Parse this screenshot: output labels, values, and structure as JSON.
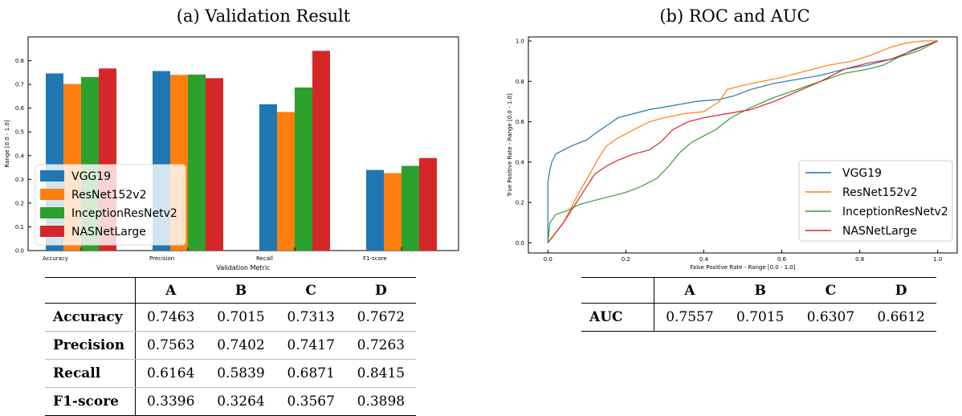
{
  "titles": {
    "a": "(a) Validation Result",
    "b": "(b) ROC and AUC"
  },
  "colors": {
    "VGG19": "#1f77b4",
    "ResNet152v2": "#ff7f0e",
    "InceptionResNetv2": "#2ca02c",
    "NASNetLarge": "#d62728"
  },
  "chart_data": [
    {
      "type": "bar",
      "categories": [
        "Accuracy",
        "Precision",
        "Recall",
        "F1-score"
      ],
      "series": [
        {
          "name": "VGG19",
          "values": [
            0.7463,
            0.7563,
            0.6164,
            0.3396
          ]
        },
        {
          "name": "ResNet152v2",
          "values": [
            0.7015,
            0.7402,
            0.5839,
            0.3264
          ]
        },
        {
          "name": "InceptionResNetv2",
          "values": [
            0.7313,
            0.7417,
            0.6871,
            0.3567
          ]
        },
        {
          "name": "NASNetLarge",
          "values": [
            0.7672,
            0.7263,
            0.8415,
            0.3898
          ]
        }
      ],
      "xlabel": "Validation Metric",
      "ylabel": "Range [0.0 - 1.0]",
      "ylim": [
        0,
        0.9
      ],
      "yticks": [
        "0.0",
        "0.1",
        "0.2",
        "0.3",
        "0.4",
        "0.5",
        "0.6",
        "0.7",
        "0.8"
      ],
      "legend": "center-left",
      "grid": false
    },
    {
      "type": "line",
      "xlabel": "False Positive Rate - Range [0.0 - 1.0]",
      "ylabel": "True Positive Rate - Range [0.0 - 1.0]",
      "xlim": [
        -0.05,
        1.05
      ],
      "ylim": [
        -0.05,
        1.02
      ],
      "xticks": [
        "0.0",
        "0.2",
        "0.4",
        "0.6",
        "0.8",
        "1.0"
      ],
      "yticks": [
        "0.0",
        "0.2",
        "0.4",
        "0.6",
        "0.8",
        "1.0"
      ],
      "legend": "center-right",
      "grid": false,
      "series": [
        {
          "name": "VGG19",
          "points": [
            [
              0,
              0
            ],
            [
              0,
              0.3
            ],
            [
              0.005,
              0.36
            ],
            [
              0.01,
              0.4
            ],
            [
              0.02,
              0.44
            ],
            [
              0.04,
              0.46
            ],
            [
              0.06,
              0.48
            ],
            [
              0.1,
              0.51
            ],
            [
              0.12,
              0.54
            ],
            [
              0.15,
              0.58
            ],
            [
              0.18,
              0.62
            ],
            [
              0.22,
              0.64
            ],
            [
              0.26,
              0.66
            ],
            [
              0.32,
              0.68
            ],
            [
              0.38,
              0.7
            ],
            [
              0.44,
              0.71
            ],
            [
              0.48,
              0.73
            ],
            [
              0.52,
              0.76
            ],
            [
              0.58,
              0.79
            ],
            [
              0.64,
              0.81
            ],
            [
              0.7,
              0.83
            ],
            [
              0.76,
              0.86
            ],
            [
              0.82,
              0.88
            ],
            [
              0.86,
              0.9
            ],
            [
              0.9,
              0.92
            ],
            [
              0.94,
              0.96
            ],
            [
              0.97,
              0.98
            ],
            [
              1,
              1
            ]
          ]
        },
        {
          "name": "ResNet152v2",
          "points": [
            [
              0,
              0
            ],
            [
              0.04,
              0.1
            ],
            [
              0.08,
              0.25
            ],
            [
              0.11,
              0.35
            ],
            [
              0.13,
              0.42
            ],
            [
              0.15,
              0.48
            ],
            [
              0.18,
              0.52
            ],
            [
              0.22,
              0.56
            ],
            [
              0.26,
              0.6
            ],
            [
              0.3,
              0.62
            ],
            [
              0.35,
              0.64
            ],
            [
              0.4,
              0.65
            ],
            [
              0.44,
              0.7
            ],
            [
              0.46,
              0.76
            ],
            [
              0.5,
              0.78
            ],
            [
              0.55,
              0.8
            ],
            [
              0.6,
              0.82
            ],
            [
              0.66,
              0.85
            ],
            [
              0.72,
              0.88
            ],
            [
              0.78,
              0.9
            ],
            [
              0.83,
              0.93
            ],
            [
              0.88,
              0.97
            ],
            [
              0.92,
              0.99
            ],
            [
              0.96,
              1.0
            ],
            [
              1,
              1
            ]
          ]
        },
        {
          "name": "InceptionResNetv2",
          "points": [
            [
              0,
              0
            ],
            [
              0.005,
              0.1
            ],
            [
              0.02,
              0.14
            ],
            [
              0.05,
              0.16
            ],
            [
              0.08,
              0.19
            ],
            [
              0.12,
              0.21
            ],
            [
              0.16,
              0.23
            ],
            [
              0.2,
              0.25
            ],
            [
              0.24,
              0.28
            ],
            [
              0.28,
              0.32
            ],
            [
              0.31,
              0.38
            ],
            [
              0.34,
              0.45
            ],
            [
              0.37,
              0.5
            ],
            [
              0.4,
              0.53
            ],
            [
              0.43,
              0.56
            ],
            [
              0.47,
              0.62
            ],
            [
              0.52,
              0.67
            ],
            [
              0.58,
              0.72
            ],
            [
              0.64,
              0.76
            ],
            [
              0.7,
              0.8
            ],
            [
              0.76,
              0.84
            ],
            [
              0.82,
              0.86
            ],
            [
              0.86,
              0.88
            ],
            [
              0.9,
              0.92
            ],
            [
              0.95,
              0.95
            ],
            [
              0.98,
              0.98
            ],
            [
              1,
              1
            ]
          ]
        },
        {
          "name": "NASNetLarge",
          "points": [
            [
              0,
              0
            ],
            [
              0.04,
              0.1
            ],
            [
              0.08,
              0.22
            ],
            [
              0.12,
              0.34
            ],
            [
              0.15,
              0.38
            ],
            [
              0.18,
              0.41
            ],
            [
              0.22,
              0.44
            ],
            [
              0.26,
              0.46
            ],
            [
              0.29,
              0.5
            ],
            [
              0.32,
              0.56
            ],
            [
              0.36,
              0.6
            ],
            [
              0.4,
              0.62
            ],
            [
              0.46,
              0.64
            ],
            [
              0.52,
              0.66
            ],
            [
              0.58,
              0.7
            ],
            [
              0.64,
              0.75
            ],
            [
              0.7,
              0.8
            ],
            [
              0.76,
              0.86
            ],
            [
              0.82,
              0.89
            ],
            [
              0.88,
              0.91
            ],
            [
              0.92,
              0.94
            ],
            [
              0.96,
              0.97
            ],
            [
              1,
              1
            ]
          ]
        }
      ]
    }
  ],
  "table_a": {
    "columns": [
      "A",
      "B",
      "C",
      "D"
    ],
    "rows": [
      {
        "label": "Accuracy",
        "values": [
          "0.7463",
          "0.7015",
          "0.7313",
          "0.7672"
        ]
      },
      {
        "label": "Precision",
        "values": [
          "0.7563",
          "0.7402",
          "0.7417",
          "0.7263"
        ]
      },
      {
        "label": "Recall",
        "values": [
          "0.6164",
          "0.5839",
          "0.6871",
          "0.8415"
        ]
      },
      {
        "label": "F1-score",
        "values": [
          "0.3396",
          "0.3264",
          "0.3567",
          "0.3898"
        ]
      }
    ]
  },
  "table_b": {
    "columns": [
      "A",
      "B",
      "C",
      "D"
    ],
    "rows": [
      {
        "label": "AUC",
        "values": [
          "0.7557",
          "0.7015",
          "0.6307",
          "0.6612"
        ]
      }
    ]
  }
}
